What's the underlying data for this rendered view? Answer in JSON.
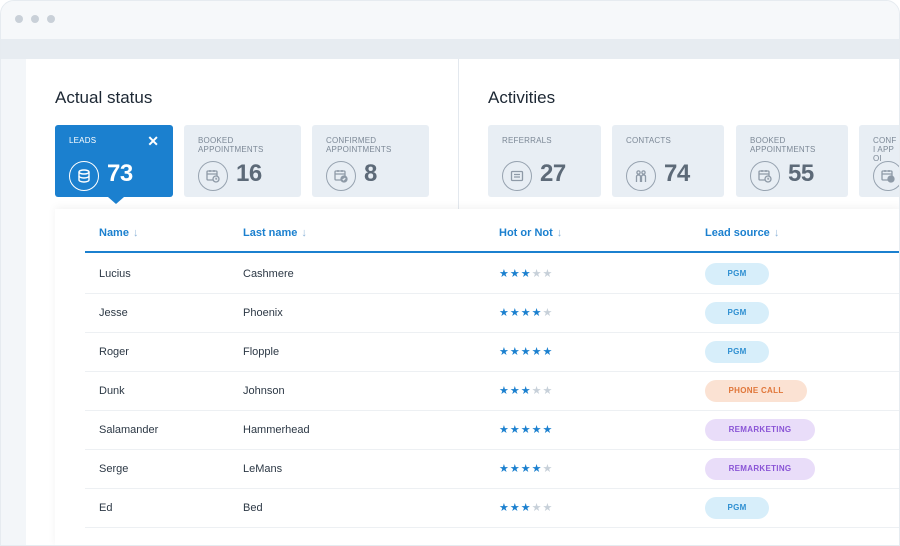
{
  "window": {
    "traffic_lights": [
      "dot",
      "dot",
      "dot"
    ]
  },
  "actual_status": {
    "title": "Actual status",
    "cards": [
      {
        "label": "LEADS",
        "count": "73",
        "icon": "database-icon",
        "active": true,
        "close": "✕"
      },
      {
        "label": "BOOKED APPOINTMENTS",
        "count": "16",
        "icon": "calendar-clock-icon",
        "active": false
      },
      {
        "label": "CONFIRMED APPOINTMENTS",
        "count": "8",
        "icon": "calendar-check-icon",
        "active": false
      }
    ]
  },
  "activities": {
    "title": "Activities",
    "cards": [
      {
        "label": "REFERRALS",
        "count": "27",
        "icon": "id-card-icon"
      },
      {
        "label": "CONTACTS",
        "count": "74",
        "icon": "people-icon"
      },
      {
        "label": "BOOKED APPOINTMENTS",
        "count": "55",
        "icon": "calendar-clock-icon"
      },
      {
        "label": "CONFI APPOI",
        "count": "",
        "icon": "calendar-check-icon"
      }
    ]
  },
  "table": {
    "columns": [
      {
        "label": "Name",
        "sort": "↓"
      },
      {
        "label": "Last name",
        "sort": "↓"
      },
      {
        "label": "Hot or Not",
        "sort": "↓"
      },
      {
        "label": "Lead source",
        "sort": "↓"
      }
    ],
    "rows": [
      {
        "name": "Lucius",
        "last_name": "Cashmere",
        "rating": 3,
        "source": "PGM"
      },
      {
        "name": "Jesse",
        "last_name": "Phoenix",
        "rating": 4,
        "source": "PGM"
      },
      {
        "name": "Roger",
        "last_name": "Flopple",
        "rating": 5,
        "source": "PGM"
      },
      {
        "name": "Dunk",
        "last_name": "Johnson",
        "rating": 3,
        "source": "PHONE CALL"
      },
      {
        "name": "Salamander",
        "last_name": "Hammerhead",
        "rating": 5,
        "source": "REMARKETING"
      },
      {
        "name": "Serge",
        "last_name": "LeMans",
        "rating": 4,
        "source": "REMARKETING"
      },
      {
        "name": "Ed",
        "last_name": "Bed",
        "rating": 3,
        "source": "PGM"
      }
    ],
    "max_rating": 5
  },
  "colors": {
    "accent": "#1b80cf",
    "pgm": "#2e8fd1",
    "phone_call": "#e07639",
    "remarketing": "#8a54d6"
  }
}
